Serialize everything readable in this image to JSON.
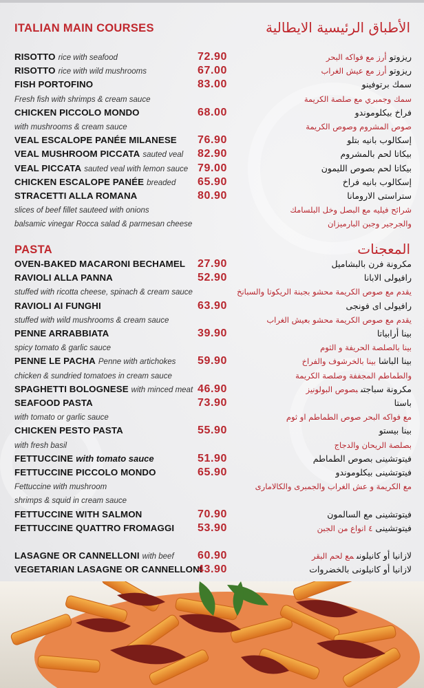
{
  "colors": {
    "accent": "#c0272d",
    "price": "#b8262e",
    "background": "#ececee"
  },
  "sections": [
    {
      "title_en": "ITALIAN MAIN COURSES",
      "title_ar": "الأطباق الرئيسية الايطالية",
      "rows": [
        {
          "name": "RISOTTO",
          "desc": "rice with seafood",
          "price": "72.90",
          "ar_name": "ريزوتو",
          "ar_desc": "أرز مع فواكه البحر"
        },
        {
          "name": "RISOTTO",
          "desc": "rice with wild mushrooms",
          "price": "67.00",
          "ar_name": "ريزوتو",
          "ar_desc": "أرز مع عيش الغراب"
        },
        {
          "name": "FISH PORTOFINO",
          "price": "83.00",
          "ar_name": "سمك برتوفينو"
        },
        {
          "desc": "Fresh fish with shrimps & cream sauce",
          "ar_desc": "سمك وجمبري مع صلصة الكريمة"
        },
        {
          "name": "CHICKEN PICCOLO MONDO",
          "price": "68.00",
          "ar_name": "فراخ بيكلوموندو"
        },
        {
          "desc": "with mushrooms & cream sauce",
          "ar_desc": "صوص المشروم وصوص الكريمة"
        },
        {
          "name": "VEAL ESCALOPE PANÉE MILANESE",
          "price": "76.90",
          "ar_name": "إسكالوب بانيه بتلو"
        },
        {
          "name": "VEAL MUSHROOM PICCATA",
          "desc": "sauted veal",
          "price": "82.90",
          "ar_name": "بيكاتا لحم بالمشروم"
        },
        {
          "name": "VEAL PICCATA",
          "desc": "sauted veal with lemon sauce",
          "price": "79.00",
          "ar_name": "بيكاتا لحم بصوص الليمون"
        },
        {
          "name": "CHICKEN ESCALOPE PANÉE",
          "desc": "breaded",
          "price": "65.90",
          "ar_name": "إسكالوب بانيه فراخ"
        },
        {
          "name": "STRACETTI ALLA ROMANA",
          "price": "80.90",
          "ar_name": "ستراستى الارومانا"
        },
        {
          "desc": "slices of beef fillet sauteed with onions",
          "ar_desc": "شرائح فيليه مع البصل وخل البلسامك"
        },
        {
          "desc": "balsamic vinegar Rocca salad & parmesan cheese",
          "ar_desc": "والجرجير وجبن البارميزان"
        }
      ]
    },
    {
      "title_en": "PASTA",
      "title_ar": "المعجنات",
      "rows": [
        {
          "name": "OVEN-BAKED MACARONI BECHAMEL",
          "price": "27.90",
          "ar_name": "مكرونة فرن بالبشاميل"
        },
        {
          "name": "RAVIOLI ALLA PANNA",
          "price": "52.90",
          "ar_name": "رافيولى الابانا"
        },
        {
          "desc": "stuffed with ricotta cheese, spinach & cream sauce",
          "ar_desc": "يقدم مع صوص الكريمة محشو بجبنة الريكوتا والسبانخ"
        },
        {
          "name": "RAVIOLI AI FUNGHI",
          "price": "63.90",
          "ar_name": "رافيولى اى فونجى"
        },
        {
          "desc": "stuffed with wild mushrooms & cream sauce",
          "ar_desc": "يقدم مع صوص الكريمة محشو بعيش الغراب"
        },
        {
          "name": "PENNE ARRABBIATA",
          "price": "39.90",
          "ar_name": "بينا أرابياتا"
        },
        {
          "desc": "spicy tomato & garlic sauce",
          "ar_desc": "بينا بالصلصة الحريفة و الثوم"
        },
        {
          "name": "PENNE LE PACHA",
          "desc": "Penne with artichokes",
          "price": "59.90",
          "ar_name": "بينا الباشا",
          "ar_desc": "بينا بالخرشوف والفراخ"
        },
        {
          "desc": "chicken & sundried tomatoes in cream sauce",
          "ar_desc": "والطماطم المجففة وصلصة الكريمة"
        },
        {
          "name": "SPAGHETTI BOLOGNESE",
          "desc": "with minced meat",
          "price": "46.90",
          "ar_name": "مكرونة سباجتى",
          "ar_desc": "بصوص البولونيز"
        },
        {
          "name": "SEAFOOD PASTA",
          "price": "73.90",
          "ar_name": "باستا"
        },
        {
          "desc": "with tomato or garlic sauce",
          "ar_desc": "مع فواكه البحر  صوص الطماطم او ثوم"
        },
        {
          "name": "CHICKEN PESTO PASTA",
          "price": "55.90",
          "ar_name": "بينا بيستو"
        },
        {
          "desc": "with fresh basil",
          "ar_desc": "بصلصة الريحان والدجاج"
        },
        {
          "name": "FETTUCCINE",
          "desc": "with tomato sauce",
          "desc_strong": true,
          "price": "51.90",
          "ar_name": "فيتوتشينى بصوص الطماطم"
        },
        {
          "name": "FETTUCCINE PICCOLO MONDO",
          "price": "65.90",
          "ar_name": "فيتوتشينى بيكلوموندو"
        },
        {
          "desc": "Fettuccine with mushroom",
          "ar_desc": "مع الكريمة و عش الغراب والجمبرى والكالامارى"
        },
        {
          "desc": " shrimps & squid in cream sauce"
        },
        {
          "name": "FETTUCCINE WITH SALMON",
          "price": "70.90",
          "ar_name": "فيتوتشينى مع السالمون"
        },
        {
          "name": "FETTUCCINE QUATTRO FROMAGGI",
          "price": "53.90",
          "ar_name": "فيتوتشينى",
          "ar_desc": "٤ انواع من الجبن"
        }
      ]
    },
    {
      "rows": [
        {
          "name": "LASAGNE OR CANNELLONI",
          "desc": "with beef",
          "price": "60.90",
          "ar_name": "لازانيا  أو كانيلونى",
          "ar_desc": "مع لحم البقر"
        },
        {
          "name": "VEGETARIAN LASAGNE OR CANNELLONI",
          "price": "43.90",
          "ar_name": "لازانيا أو كانيلونى بالخضروات"
        }
      ]
    }
  ],
  "photo": {
    "subject": "penne pasta with sun-dried tomatoes and basil"
  }
}
